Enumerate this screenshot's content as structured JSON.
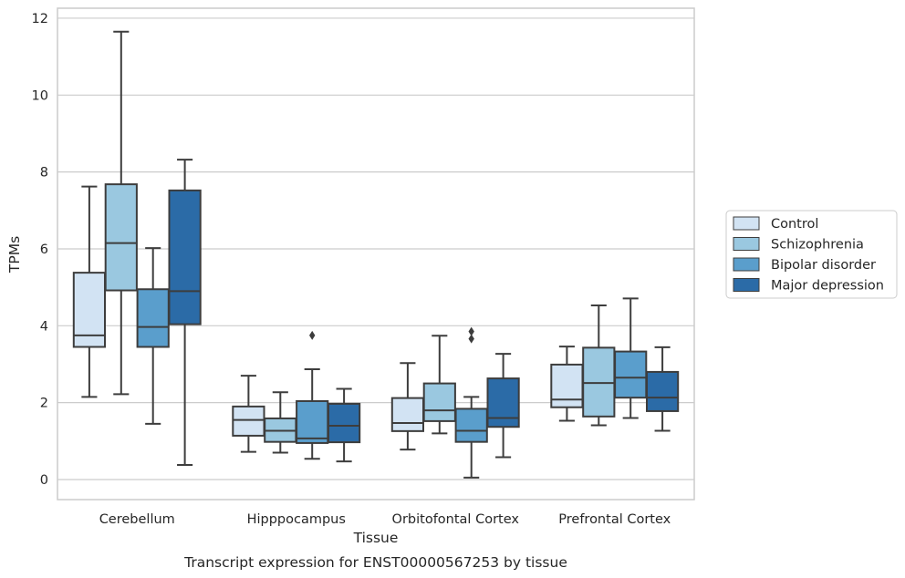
{
  "chart_data": {
    "type": "box",
    "caption": "Transcript expression for ENST00000567253 by tissue",
    "xlabel": "Tissue",
    "ylabel": "TPMs",
    "ylim": [
      -0.5,
      12.25
    ],
    "yticks": [
      0,
      2,
      4,
      6,
      8,
      10,
      12
    ],
    "grid": true,
    "legend_position": "right",
    "categories": [
      "Cerebellum",
      "Hipppocampus",
      "Orbitofontal Cortex",
      "Prefrontal Cortex"
    ],
    "series": [
      {
        "name": "Control",
        "color": "#d2e3f3",
        "boxes": [
          {
            "whislo": 2.15,
            "q1": 3.45,
            "med": 3.75,
            "q3": 5.38,
            "whishi": 7.62,
            "fliers": []
          },
          {
            "whislo": 0.72,
            "q1": 1.14,
            "med": 1.55,
            "q3": 1.9,
            "whishi": 2.7,
            "fliers": []
          },
          {
            "whislo": 0.78,
            "q1": 1.26,
            "med": 1.47,
            "q3": 2.12,
            "whishi": 3.03,
            "fliers": []
          },
          {
            "whislo": 1.53,
            "q1": 1.88,
            "med": 2.08,
            "q3": 2.99,
            "whishi": 3.46,
            "fliers": []
          }
        ]
      },
      {
        "name": "Schizophrenia",
        "color": "#9ac8e0",
        "boxes": [
          {
            "whislo": 2.22,
            "q1": 4.92,
            "med": 6.15,
            "q3": 7.68,
            "whishi": 11.65,
            "fliers": []
          },
          {
            "whislo": 0.7,
            "q1": 0.98,
            "med": 1.27,
            "q3": 1.59,
            "whishi": 2.27,
            "fliers": []
          },
          {
            "whislo": 1.2,
            "q1": 1.52,
            "med": 1.8,
            "q3": 2.5,
            "whishi": 3.74,
            "fliers": []
          },
          {
            "whislo": 1.41,
            "q1": 1.64,
            "med": 2.51,
            "q3": 3.43,
            "whishi": 4.53,
            "fliers": []
          }
        ]
      },
      {
        "name": "Bipolar disorder",
        "color": "#5a9ecc",
        "boxes": [
          {
            "whislo": 1.45,
            "q1": 3.45,
            "med": 3.97,
            "q3": 4.95,
            "whishi": 6.02,
            "fliers": []
          },
          {
            "whislo": 0.54,
            "q1": 0.95,
            "med": 1.07,
            "q3": 2.04,
            "whishi": 2.87,
            "fliers": [
              3.75
            ]
          },
          {
            "whislo": 0.05,
            "q1": 0.98,
            "med": 1.27,
            "q3": 1.84,
            "whishi": 2.15,
            "fliers": [
              3.85,
              3.66
            ]
          },
          {
            "whislo": 1.6,
            "q1": 2.13,
            "med": 2.65,
            "q3": 3.33,
            "whishi": 4.71,
            "fliers": []
          }
        ]
      },
      {
        "name": "Major depression",
        "color": "#2b6ba7",
        "boxes": [
          {
            "whislo": 0.38,
            "q1": 4.04,
            "med": 4.9,
            "q3": 7.52,
            "whishi": 8.32,
            "fliers": []
          },
          {
            "whislo": 0.47,
            "q1": 0.97,
            "med": 1.4,
            "q3": 1.97,
            "whishi": 2.36,
            "fliers": []
          },
          {
            "whislo": 0.58,
            "q1": 1.37,
            "med": 1.6,
            "q3": 2.63,
            "whishi": 3.27,
            "fliers": []
          },
          {
            "whislo": 1.27,
            "q1": 1.78,
            "med": 2.13,
            "q3": 2.8,
            "whishi": 3.44,
            "fliers": []
          }
        ]
      }
    ]
  }
}
